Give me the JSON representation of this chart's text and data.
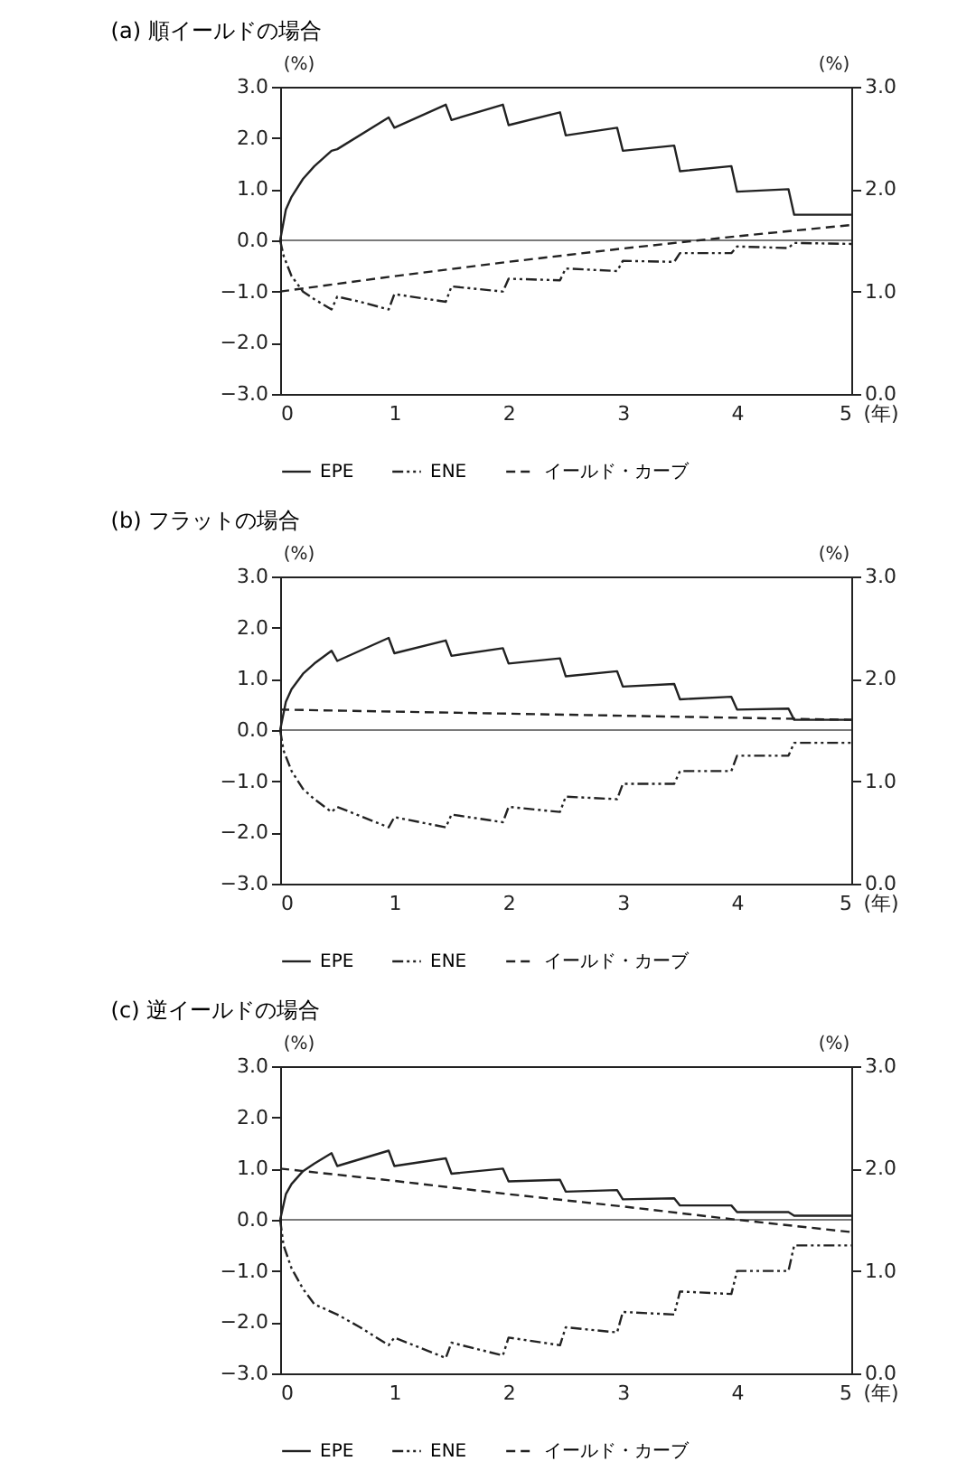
{
  "chart_data": [
    {
      "type": "line",
      "title": "(a) 順イールドの場合",
      "xlabel": "(年)",
      "ylabel": "(%)",
      "y2label": "(%)",
      "xlim": [
        0,
        5
      ],
      "xticks": [
        0,
        1,
        2,
        3,
        4,
        5
      ],
      "ylim": [
        -3,
        3
      ],
      "yticks": [
        {
          "value": -3,
          "label": "−3.0"
        },
        {
          "value": -2,
          "label": "−2.0"
        },
        {
          "value": -1,
          "label": "−1.0"
        },
        {
          "value": 0,
          "label": "0.0"
        },
        {
          "value": 1,
          "label": "1.0"
        },
        {
          "value": 2,
          "label": "2.0"
        },
        {
          "value": 3,
          "label": "3.0"
        }
      ],
      "y2lim": [
        0,
        3
      ],
      "y2ticks": [
        {
          "value": 0,
          "label": "0.0"
        },
        {
          "value": 1,
          "label": "1.0"
        },
        {
          "value": 2,
          "label": "2.0"
        },
        {
          "value": 3,
          "label": "3.0"
        }
      ],
      "grid": false,
      "legend": "bottom",
      "ref_lines": [
        {
          "axis": "y",
          "value": 0,
          "color": "#222222"
        }
      ],
      "series": [
        {
          "name": "EPE",
          "color": "#222222",
          "line_style": "solid",
          "x": [
            0,
            0.05,
            0.1,
            0.2,
            0.3,
            0.45,
            0.5,
            0.95,
            1.0,
            1.45,
            1.5,
            1.95,
            2.0,
            2.45,
            2.5,
            2.95,
            3.0,
            3.45,
            3.5,
            3.95,
            4.0,
            4.45,
            4.5,
            5
          ],
          "values": [
            0,
            0.6,
            0.85,
            1.2,
            1.45,
            1.75,
            1.78,
            2.4,
            2.2,
            2.65,
            2.35,
            2.65,
            2.25,
            2.5,
            2.05,
            2.2,
            1.75,
            1.85,
            1.35,
            1.45,
            0.95,
            1.0,
            0.5,
            0.5
          ]
        },
        {
          "name": "ENE",
          "color": "#222222",
          "line_style": "dotted",
          "x": [
            0,
            0.03,
            0.1,
            0.2,
            0.3,
            0.45,
            0.5,
            0.7,
            0.95,
            1.0,
            1.45,
            1.5,
            1.95,
            2.0,
            2.45,
            2.5,
            2.95,
            3.0,
            3.45,
            3.5,
            3.95,
            4.0,
            4.45,
            4.5,
            5
          ],
          "values": [
            0,
            -0.3,
            -0.7,
            -1.0,
            -1.15,
            -1.35,
            -1.1,
            -1.2,
            -1.35,
            -1.05,
            -1.2,
            -0.9,
            -1.0,
            -0.75,
            -0.78,
            -0.55,
            -0.6,
            -0.4,
            -0.42,
            -0.25,
            -0.25,
            -0.12,
            -0.15,
            -0.05,
            -0.07
          ]
        },
        {
          "name": "イールド・カーブ",
          "color": "#222222",
          "line_style": "dashed",
          "axis": "y2",
          "x": [
            0,
            1,
            2,
            3,
            4,
            5
          ],
          "values": [
            1.0,
            1.15,
            1.29,
            1.42,
            1.54,
            1.65
          ]
        }
      ]
    },
    {
      "type": "line",
      "title": "(b) フラットの場合",
      "xlabel": "(年)",
      "ylabel": "(%)",
      "y2label": "(%)",
      "xlim": [
        0,
        5
      ],
      "xticks": [
        0,
        1,
        2,
        3,
        4,
        5
      ],
      "ylim": [
        -3,
        3
      ],
      "yticks": [
        {
          "value": -3,
          "label": "−3.0"
        },
        {
          "value": -2,
          "label": "−2.0"
        },
        {
          "value": -1,
          "label": "−1.0"
        },
        {
          "value": 0,
          "label": "0.0"
        },
        {
          "value": 1,
          "label": "1.0"
        },
        {
          "value": 2,
          "label": "2.0"
        },
        {
          "value": 3,
          "label": "3.0"
        }
      ],
      "y2lim": [
        0,
        3
      ],
      "y2ticks": [
        {
          "value": 0,
          "label": "0.0"
        },
        {
          "value": 1,
          "label": "1.0"
        },
        {
          "value": 2,
          "label": "2.0"
        },
        {
          "value": 3,
          "label": "3.0"
        }
      ],
      "grid": false,
      "legend": "bottom",
      "ref_lines": [
        {
          "axis": "y",
          "value": 0,
          "color": "#222222"
        }
      ],
      "series": [
        {
          "name": "EPE",
          "color": "#222222",
          "line_style": "solid",
          "x": [
            0,
            0.05,
            0.1,
            0.2,
            0.3,
            0.45,
            0.5,
            0.95,
            1.0,
            1.45,
            1.5,
            1.95,
            2.0,
            2.45,
            2.5,
            2.95,
            3.0,
            3.45,
            3.5,
            3.95,
            4.0,
            4.45,
            4.5,
            5
          ],
          "values": [
            0,
            0.55,
            0.8,
            1.1,
            1.3,
            1.55,
            1.35,
            1.8,
            1.5,
            1.75,
            1.45,
            1.6,
            1.3,
            1.4,
            1.05,
            1.15,
            0.85,
            0.9,
            0.6,
            0.65,
            0.4,
            0.42,
            0.2,
            0.2
          ]
        },
        {
          "name": "ENE",
          "color": "#222222",
          "line_style": "dotted",
          "x": [
            0,
            0.03,
            0.1,
            0.2,
            0.3,
            0.45,
            0.5,
            0.95,
            1.0,
            1.45,
            1.5,
            1.95,
            2.0,
            2.45,
            2.5,
            2.95,
            3.0,
            3.45,
            3.5,
            3.95,
            4.0,
            4.45,
            4.5,
            5
          ],
          "values": [
            0,
            -0.4,
            -0.8,
            -1.15,
            -1.35,
            -1.6,
            -1.5,
            -1.9,
            -1.7,
            -1.9,
            -1.65,
            -1.8,
            -1.5,
            -1.6,
            -1.3,
            -1.35,
            -1.05,
            -1.05,
            -0.8,
            -0.8,
            -0.5,
            -0.5,
            -0.25,
            -0.25
          ]
        },
        {
          "name": "イールド・カーブ",
          "color": "#222222",
          "line_style": "dashed",
          "axis": "y2",
          "x": [
            0,
            1,
            2,
            3,
            4,
            5
          ],
          "values": [
            1.7,
            1.68,
            1.66,
            1.64,
            1.62,
            1.6
          ]
        }
      ]
    },
    {
      "type": "line",
      "title": "(c) 逆イールドの場合",
      "xlabel": "(年)",
      "ylabel": "(%)",
      "y2label": "(%)",
      "xlim": [
        0,
        5
      ],
      "xticks": [
        0,
        1,
        2,
        3,
        4,
        5
      ],
      "ylim": [
        -3,
        3
      ],
      "yticks": [
        {
          "value": -3,
          "label": "−3.0"
        },
        {
          "value": -2,
          "label": "−2.0"
        },
        {
          "value": -1,
          "label": "−1.0"
        },
        {
          "value": 0,
          "label": "0.0"
        },
        {
          "value": 1,
          "label": "1.0"
        },
        {
          "value": 2,
          "label": "2.0"
        },
        {
          "value": 3,
          "label": "3.0"
        }
      ],
      "y2lim": [
        0,
        3
      ],
      "y2ticks": [
        {
          "value": 0,
          "label": "0.0"
        },
        {
          "value": 1,
          "label": "1.0"
        },
        {
          "value": 2,
          "label": "2.0"
        },
        {
          "value": 3,
          "label": "3.0"
        }
      ],
      "grid": false,
      "legend": "bottom",
      "ref_lines": [
        {
          "axis": "y",
          "value": 0,
          "color": "#222222"
        }
      ],
      "series": [
        {
          "name": "EPE",
          "color": "#222222",
          "line_style": "solid",
          "x": [
            0,
            0.05,
            0.1,
            0.2,
            0.3,
            0.45,
            0.5,
            0.95,
            1.0,
            1.45,
            1.5,
            1.95,
            2.0,
            2.45,
            2.5,
            2.95,
            3.0,
            3.45,
            3.5,
            3.95,
            4.0,
            4.45,
            4.5,
            5
          ],
          "values": [
            0,
            0.5,
            0.7,
            0.95,
            1.1,
            1.3,
            1.05,
            1.35,
            1.05,
            1.2,
            0.9,
            1.0,
            0.75,
            0.78,
            0.55,
            0.58,
            0.4,
            0.42,
            0.28,
            0.28,
            0.15,
            0.15,
            0.08,
            0.08
          ]
        },
        {
          "name": "ENE",
          "color": "#222222",
          "line_style": "dotted",
          "x": [
            0,
            0.03,
            0.1,
            0.2,
            0.3,
            0.5,
            0.7,
            0.95,
            1.0,
            1.45,
            1.5,
            1.95,
            2.0,
            2.45,
            2.5,
            2.95,
            3.0,
            3.45,
            3.5,
            3.95,
            4.0,
            4.45,
            4.5,
            5
          ],
          "values": [
            0,
            -0.5,
            -0.95,
            -1.35,
            -1.65,
            -1.85,
            -2.1,
            -2.45,
            -2.3,
            -2.7,
            -2.4,
            -2.65,
            -2.3,
            -2.45,
            -2.1,
            -2.2,
            -1.8,
            -1.85,
            -1.4,
            -1.45,
            -1.0,
            -1.0,
            -0.5,
            -0.5
          ]
        },
        {
          "name": "イールド・カーブ",
          "color": "#222222",
          "line_style": "dashed",
          "axis": "y2",
          "x": [
            0,
            1,
            2,
            3,
            4,
            5
          ],
          "values": [
            2.0,
            1.88,
            1.75,
            1.63,
            1.5,
            1.38
          ]
        }
      ]
    }
  ]
}
